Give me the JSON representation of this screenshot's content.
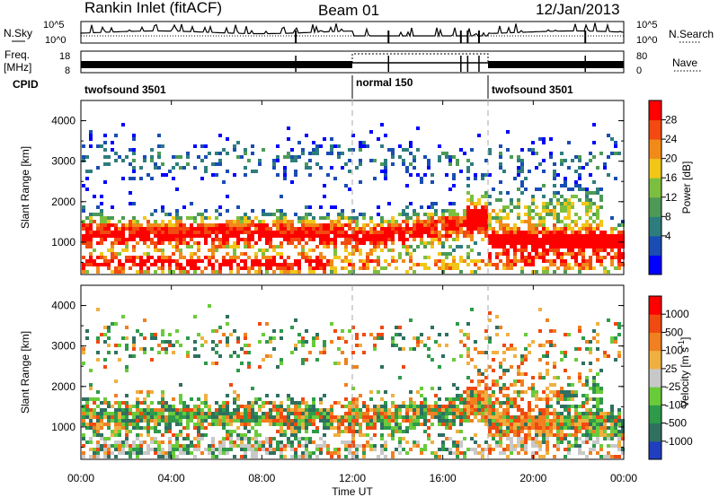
{
  "header": {
    "station": "Rankin Inlet (fitACF)",
    "beam": "Beam 01",
    "date": "12/Jan/2013"
  },
  "top_panels": {
    "nsky_label": "N.Sky",
    "nsearch_label": "N.Search",
    "nsky_ticks": [
      "10^5",
      "10^0"
    ],
    "nsearch_ticks": [
      "10^5",
      "10^0"
    ],
    "freq_label_1": "Freq.",
    "freq_label_2": "[MHz]",
    "freq_ticks": [
      "18",
      "8"
    ],
    "nave_label": "Nave",
    "nave_ticks": [
      "80",
      "0"
    ],
    "cpid_label": "CPID",
    "cpid_segments": [
      {
        "name": "twofsound 3501",
        "start": 0,
        "end": 12
      },
      {
        "name": "normal 150",
        "start": 12,
        "end": 18
      },
      {
        "name": "twofsound 3501",
        "start": 18,
        "end": 24
      }
    ]
  },
  "chart_data": [
    {
      "type": "heatmap",
      "name": "power",
      "ylabel": "Slant Range [km]",
      "ylim": [
        200,
        4500
      ],
      "yticks": [
        "4000",
        "3000",
        "2000",
        "1000"
      ],
      "colorbar_label": "Power [dB]",
      "colorbar_ticks": [
        "28",
        "24",
        "20",
        "16",
        "12",
        "8",
        "4"
      ],
      "colors": [
        "#0000ff",
        "#1a4db3",
        "#2e7d7d",
        "#4c9a55",
        "#7cbf3e",
        "#f2c618",
        "#f28a1a",
        "#f24a10",
        "#ff0000"
      ]
    },
    {
      "type": "heatmap",
      "name": "velocity",
      "ylabel": "Slant Range [km]",
      "ylim": [
        200,
        4500
      ],
      "yticks": [
        "4000",
        "3000",
        "2000",
        "1000"
      ],
      "colorbar_label": "Velocity [m s^-1]",
      "colorbar_ticks": [
        "1000",
        "500",
        "100",
        "25",
        "-25",
        "-100",
        "-500",
        "-1000"
      ],
      "colors": [
        "#1f3fbf",
        "#2f7060",
        "#2e9a4a",
        "#6acb3a",
        "#c8c8c8",
        "#f0b040",
        "#f08020",
        "#f04a10",
        "#ff0000"
      ]
    }
  ],
  "x_axis": {
    "label": "Time UT",
    "ticks": [
      "00:00",
      "04:00",
      "08:00",
      "12:00",
      "16:00",
      "20:00",
      "00:00"
    ]
  }
}
